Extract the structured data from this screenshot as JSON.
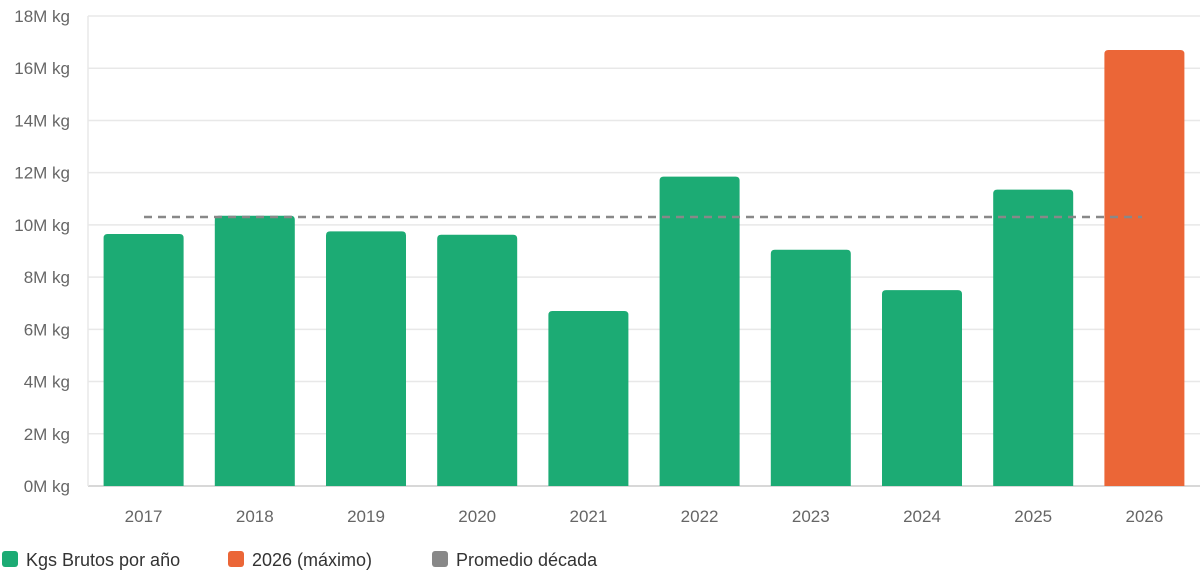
{
  "chart_data": {
    "type": "bar",
    "categories": [
      "2017",
      "2018",
      "2019",
      "2020",
      "2021",
      "2022",
      "2023",
      "2024",
      "2025",
      "2026"
    ],
    "series": [
      {
        "name": "Kgs Brutos por año",
        "values": [
          9.65,
          10.35,
          9.75,
          9.62,
          6.7,
          11.85,
          9.05,
          7.5,
          11.35,
          16.7
        ],
        "color": "#1cab74"
      }
    ],
    "highlight": {
      "index": 9,
      "color": "#eb6637"
    },
    "average": {
      "value": 10.3,
      "color": "#888888",
      "style": "dashed"
    },
    "yticks": [
      "0M kg",
      "2M kg",
      "4M kg",
      "6M kg",
      "8M kg",
      "10M kg",
      "12M kg",
      "14M kg",
      "16M kg",
      "18M kg"
    ],
    "ylim": [
      0,
      18
    ],
    "grid": true,
    "legend": {
      "placement": "bottom-left",
      "items": [
        {
          "label": "Kgs Brutos por año",
          "color": "#1cab74"
        },
        {
          "label": "2026 (máximo)",
          "color": "#eb6637"
        },
        {
          "label": "Promedio década",
          "color": "#888888"
        }
      ]
    }
  }
}
